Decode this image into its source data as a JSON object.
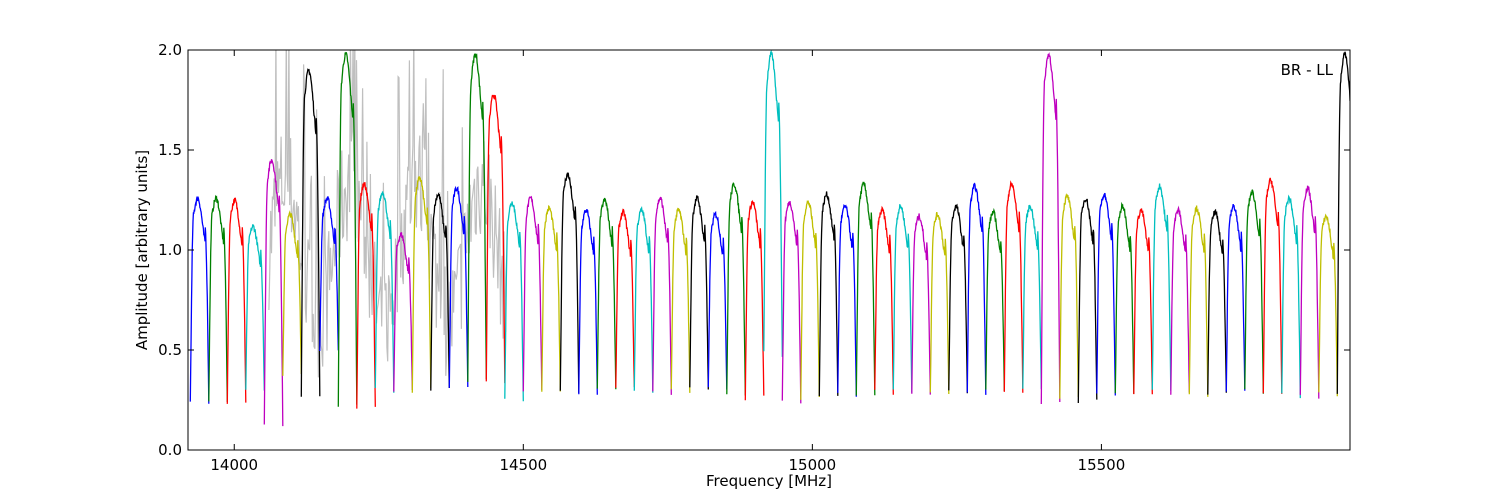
{
  "chart_data": {
    "type": "line",
    "annotation": "BR - LL",
    "xlabel": "Frequency [MHz]",
    "ylabel": "Amplitude [arbitrary units]",
    "xlim": [
      13920,
      15930
    ],
    "ylim": [
      0.0,
      2.0
    ],
    "xticks": [
      14000,
      14500,
      15000,
      15500
    ],
    "yticks": [
      0.0,
      0.5,
      1.0,
      1.5,
      2.0
    ],
    "ytick_labels": [
      "0.0",
      "0.5",
      "1.0",
      "1.5",
      "2.0"
    ],
    "grid": false,
    "palette": [
      "#0000ff",
      "#008000",
      "#ff0000",
      "#00bfbf",
      "#bf00bf",
      "#bfbf00",
      "#000000"
    ],
    "reference_series_color": "#bfbfbf",
    "band_width_mhz": 32,
    "band_starts_mhz": [
      13924,
      13956,
      13988,
      14020,
      14052,
      14084,
      14116,
      14148,
      14180,
      14212,
      14244,
      14276,
      14308,
      14340,
      14372,
      14404,
      14436,
      14468,
      14500,
      14532,
      14564,
      14596,
      14628,
      14660,
      14692,
      14724,
      14756,
      14788,
      14820,
      14852,
      14884,
      14916,
      14948,
      14980,
      15012,
      15044,
      15076,
      15108,
      15140,
      15172,
      15204,
      15236,
      15268,
      15300,
      15332,
      15364,
      15396,
      15428,
      15460,
      15492,
      15524,
      15556,
      15588,
      15620,
      15652,
      15684,
      15716,
      15748,
      15780,
      15812,
      15844,
      15876,
      15908
    ],
    "band_peak_values": [
      1.28,
      1.28,
      1.27,
      1.14,
      1.47,
      1.2,
      1.92,
      1.28,
      2.0,
      1.35,
      1.31,
      1.1,
      1.38,
      1.3,
      1.33,
      2.0,
      1.8,
      1.26,
      1.28,
      1.23,
      1.4,
      1.22,
      1.27,
      1.21,
      1.22,
      1.28,
      1.22,
      1.28,
      1.2,
      1.35,
      1.26,
      2.0,
      1.26,
      1.26,
      1.3,
      1.24,
      1.35,
      1.22,
      1.24,
      1.19,
      1.2,
      1.24,
      1.34,
      1.21,
      1.35,
      1.24,
      2.0,
      1.29,
      1.28,
      1.3,
      1.24,
      1.22,
      1.34,
      1.22,
      1.23,
      1.21,
      1.24,
      1.31,
      1.37,
      1.28,
      1.33,
      1.19,
      2.0
    ],
    "band_min_values": [
      0.24,
      0.25,
      0.24,
      0.3,
      0.13,
      0.37,
      0.27,
      0.5,
      0.22,
      0.21,
      0.3,
      0.3,
      0.3,
      0.31,
      0.3,
      0.35,
      0.34,
      0.25,
      0.3,
      0.3,
      0.29,
      0.28,
      0.3,
      0.3,
      0.3,
      0.29,
      0.3,
      0.3,
      0.3,
      0.28,
      0.26,
      0.48,
      0.24,
      0.26,
      0.28,
      0.28,
      0.27,
      0.29,
      0.3,
      0.28,
      0.28,
      0.29,
      0.29,
      0.3,
      0.3,
      0.3,
      0.24,
      0.27,
      0.24,
      0.27,
      0.27,
      0.28,
      0.29,
      0.28,
      0.28,
      0.29,
      0.29,
      0.29,
      0.28,
      0.27,
      0.27,
      0.28,
      0.29
    ]
  }
}
